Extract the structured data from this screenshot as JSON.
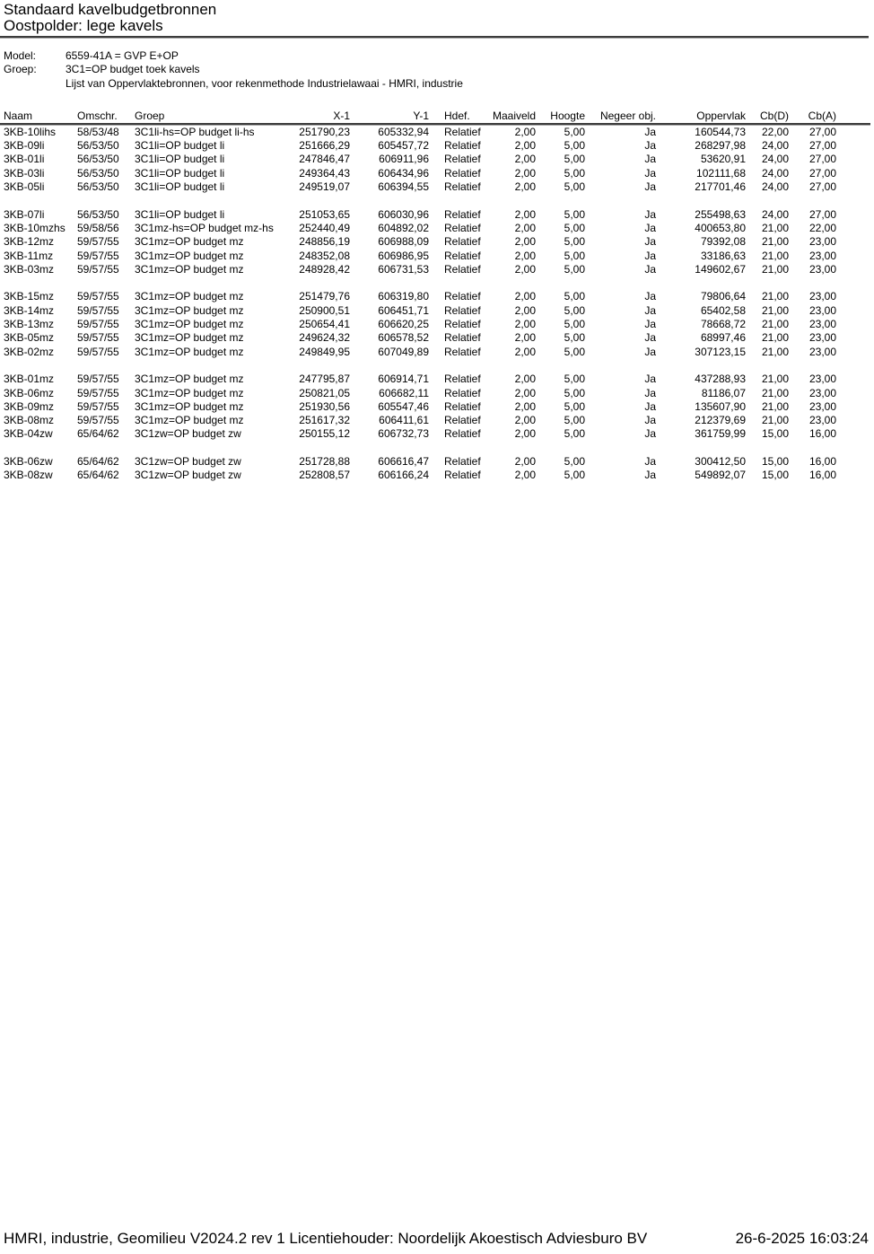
{
  "colors": {
    "background": "#ffffff",
    "text": "#000000",
    "rule_dark": "#3c3c3c",
    "rule_light": "#a8a8a8"
  },
  "header": {
    "title": "Standaard kavelbudgetbronnen",
    "subtitle": "Oostpolder: lege kavels"
  },
  "meta": {
    "model_label": "Model:",
    "model_value": "6559-41A = GVP E+OP",
    "groep_label": "Groep:",
    "groep_value": "3C1=OP budget toek kavels",
    "list_description": "Lijst van Oppervlaktebronnen, voor rekenmethode Industrielawaai - HMRI, industrie"
  },
  "table": {
    "columns": [
      {
        "key": "naam",
        "label": "Naam",
        "align": "left"
      },
      {
        "key": "omschr",
        "label": "Omschr.",
        "align": "left"
      },
      {
        "key": "groep",
        "label": "Groep",
        "align": "left"
      },
      {
        "key": "x1",
        "label": "X-1",
        "align": "right"
      },
      {
        "key": "y1",
        "label": "Y-1",
        "align": "right"
      },
      {
        "key": "hdef",
        "label": "Hdef.",
        "align": "left"
      },
      {
        "key": "maaiveld",
        "label": "Maaiveld",
        "align": "right"
      },
      {
        "key": "hoogte",
        "label": "Hoogte",
        "align": "right"
      },
      {
        "key": "negeer_obj",
        "label": "Negeer obj.",
        "align": "right"
      },
      {
        "key": "oppervlak",
        "label": "Oppervlak",
        "align": "right"
      },
      {
        "key": "cbd",
        "label": "Cb(D)",
        "align": "right"
      },
      {
        "key": "cba",
        "label": "Cb(A)",
        "align": "right"
      }
    ],
    "groups": [
      [
        [
          "3KB-10lihs",
          "58/53/48",
          "3C1li-hs=OP budget li-hs",
          "251790,23",
          "605332,94",
          "Relatief",
          "2,00",
          "5,00",
          "Ja",
          "160544,73",
          "22,00",
          "27,00"
        ],
        [
          "3KB-09li",
          "56/53/50",
          "3C1li=OP budget li",
          "251666,29",
          "605457,72",
          "Relatief",
          "2,00",
          "5,00",
          "Ja",
          "268297,98",
          "24,00",
          "27,00"
        ],
        [
          "3KB-01li",
          "56/53/50",
          "3C1li=OP budget li",
          "247846,47",
          "606911,96",
          "Relatief",
          "2,00",
          "5,00",
          "Ja",
          "53620,91",
          "24,00",
          "27,00"
        ],
        [
          "3KB-03li",
          "56/53/50",
          "3C1li=OP budget li",
          "249364,43",
          "606434,96",
          "Relatief",
          "2,00",
          "5,00",
          "Ja",
          "102111,68",
          "24,00",
          "27,00"
        ],
        [
          "3KB-05li",
          "56/53/50",
          "3C1li=OP budget li",
          "249519,07",
          "606394,55",
          "Relatief",
          "2,00",
          "5,00",
          "Ja",
          "217701,46",
          "24,00",
          "27,00"
        ]
      ],
      [
        [
          "3KB-07li",
          "56/53/50",
          "3C1li=OP budget li",
          "251053,65",
          "606030,96",
          "Relatief",
          "2,00",
          "5,00",
          "Ja",
          "255498,63",
          "24,00",
          "27,00"
        ],
        [
          "3KB-10mzhs",
          "59/58/56",
          "3C1mz-hs=OP budget mz-hs",
          "252440,49",
          "604892,02",
          "Relatief",
          "2,00",
          "5,00",
          "Ja",
          "400653,80",
          "21,00",
          "22,00"
        ],
        [
          "3KB-12mz",
          "59/57/55",
          "3C1mz=OP budget mz",
          "248856,19",
          "606988,09",
          "Relatief",
          "2,00",
          "5,00",
          "Ja",
          "79392,08",
          "21,00",
          "23,00"
        ],
        [
          "3KB-11mz",
          "59/57/55",
          "3C1mz=OP budget mz",
          "248352,08",
          "606986,95",
          "Relatief",
          "2,00",
          "5,00",
          "Ja",
          "33186,63",
          "21,00",
          "23,00"
        ],
        [
          "3KB-03mz",
          "59/57/55",
          "3C1mz=OP budget mz",
          "248928,42",
          "606731,53",
          "Relatief",
          "2,00",
          "5,00",
          "Ja",
          "149602,67",
          "21,00",
          "23,00"
        ]
      ],
      [
        [
          "3KB-15mz",
          "59/57/55",
          "3C1mz=OP budget mz",
          "251479,76",
          "606319,80",
          "Relatief",
          "2,00",
          "5,00",
          "Ja",
          "79806,64",
          "21,00",
          "23,00"
        ],
        [
          "3KB-14mz",
          "59/57/55",
          "3C1mz=OP budget mz",
          "250900,51",
          "606451,71",
          "Relatief",
          "2,00",
          "5,00",
          "Ja",
          "65402,58",
          "21,00",
          "23,00"
        ],
        [
          "3KB-13mz",
          "59/57/55",
          "3C1mz=OP budget mz",
          "250654,41",
          "606620,25",
          "Relatief",
          "2,00",
          "5,00",
          "Ja",
          "78668,72",
          "21,00",
          "23,00"
        ],
        [
          "3KB-05mz",
          "59/57/55",
          "3C1mz=OP budget mz",
          "249624,32",
          "606578,52",
          "Relatief",
          "2,00",
          "5,00",
          "Ja",
          "68997,46",
          "21,00",
          "23,00"
        ],
        [
          "3KB-02mz",
          "59/57/55",
          "3C1mz=OP budget mz",
          "249849,95",
          "607049,89",
          "Relatief",
          "2,00",
          "5,00",
          "Ja",
          "307123,15",
          "21,00",
          "23,00"
        ]
      ],
      [
        [
          "3KB-01mz",
          "59/57/55",
          "3C1mz=OP budget mz",
          "247795,87",
          "606914,71",
          "Relatief",
          "2,00",
          "5,00",
          "Ja",
          "437288,93",
          "21,00",
          "23,00"
        ],
        [
          "3KB-06mz",
          "59/57/55",
          "3C1mz=OP budget mz",
          "250821,05",
          "606682,11",
          "Relatief",
          "2,00",
          "5,00",
          "Ja",
          "81186,07",
          "21,00",
          "23,00"
        ],
        [
          "3KB-09mz",
          "59/57/55",
          "3C1mz=OP budget mz",
          "251930,56",
          "605547,46",
          "Relatief",
          "2,00",
          "5,00",
          "Ja",
          "135607,90",
          "21,00",
          "23,00"
        ],
        [
          "3KB-08mz",
          "59/57/55",
          "3C1mz=OP budget mz",
          "251617,32",
          "606411,61",
          "Relatief",
          "2,00",
          "5,00",
          "Ja",
          "212379,69",
          "21,00",
          "23,00"
        ],
        [
          "3KB-04zw",
          "65/64/62",
          "3C1zw=OP budget zw",
          "250155,12",
          "606732,73",
          "Relatief",
          "2,00",
          "5,00",
          "Ja",
          "361759,99",
          "15,00",
          "16,00"
        ]
      ],
      [
        [
          "3KB-06zw",
          "65/64/62",
          "3C1zw=OP budget zw",
          "251728,88",
          "606616,47",
          "Relatief",
          "2,00",
          "5,00",
          "Ja",
          "300412,50",
          "15,00",
          "16,00"
        ],
        [
          "3KB-08zw",
          "65/64/62",
          "3C1zw=OP budget zw",
          "252808,57",
          "606166,24",
          "Relatief",
          "2,00",
          "5,00",
          "Ja",
          "549892,07",
          "15,00",
          "16,00"
        ]
      ]
    ]
  },
  "footer": {
    "left": "HMRI, industrie, Geomilieu V2024.2 rev 1 Licentiehouder: Noordelijk Akoestisch Adviesburo BV",
    "right": "26-6-2025 16:03:24"
  }
}
